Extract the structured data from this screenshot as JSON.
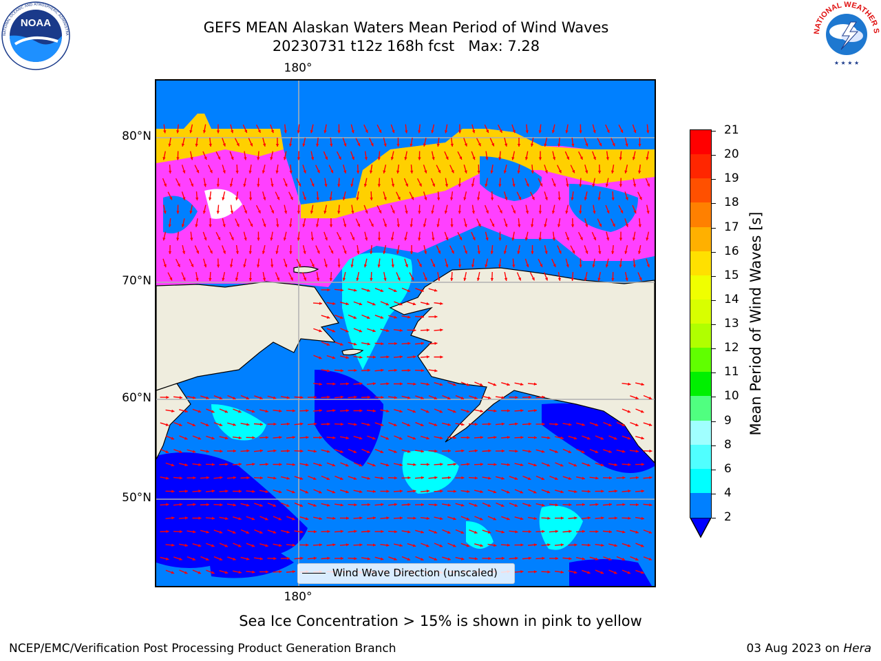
{
  "header": {
    "title_line1": "GEFS MEAN Alaskan Waters Mean Period of Wind Waves",
    "title_line2": "20230731 t12z 168h fcst   Max: 7.28"
  },
  "logos": {
    "left": "NOAA",
    "left_ring": "NATIONAL OCEANIC AND ATMOSPHERIC ADMINISTRATION · U.S. DEPARTMENT OF COMMERCE",
    "right_ring": "NATIONAL WEATHER SERVICE"
  },
  "map": {
    "lon_top": "180°",
    "lon_bottom": "180°",
    "lat_labels": [
      "80°N",
      "70°N",
      "60°N",
      "50°N"
    ],
    "legend_label": "Wind Wave Direction (unscaled)",
    "colors": {
      "land": "#efedde",
      "ocean_2_4": "#0080ff",
      "ocean_lt2": "#0000ff",
      "ocean_4_6": "#00ffff",
      "ice": "#ff40ff",
      "arrow": "#ff0000"
    }
  },
  "colorbar": {
    "label": "Mean Period of Wind Waves [s]",
    "ticks": [
      "21",
      "20",
      "19",
      "18",
      "17",
      "16",
      "15",
      "14",
      "13",
      "12",
      "11",
      "10",
      "9",
      "8",
      "6",
      "4",
      "2"
    ],
    "colors": [
      "#ff0000",
      "#ff2600",
      "#ff5000",
      "#ff8000",
      "#ffb000",
      "#ffe000",
      "#f0ff00",
      "#d8ff00",
      "#b0ff00",
      "#60ff00",
      "#00f000",
      "#50ff80",
      "#a0ffff",
      "#50ffff",
      "#00ffff",
      "#0080ff"
    ],
    "under_color": "#0000ff"
  },
  "footer": {
    "caption": "Sea Ice Concentration > 15% is shown in pink to yellow",
    "left": "NCEP/EMC/Verification Post Processing Product Generation Branch",
    "right_date": "03 Aug 2023 on ",
    "right_machine": "Hera"
  }
}
